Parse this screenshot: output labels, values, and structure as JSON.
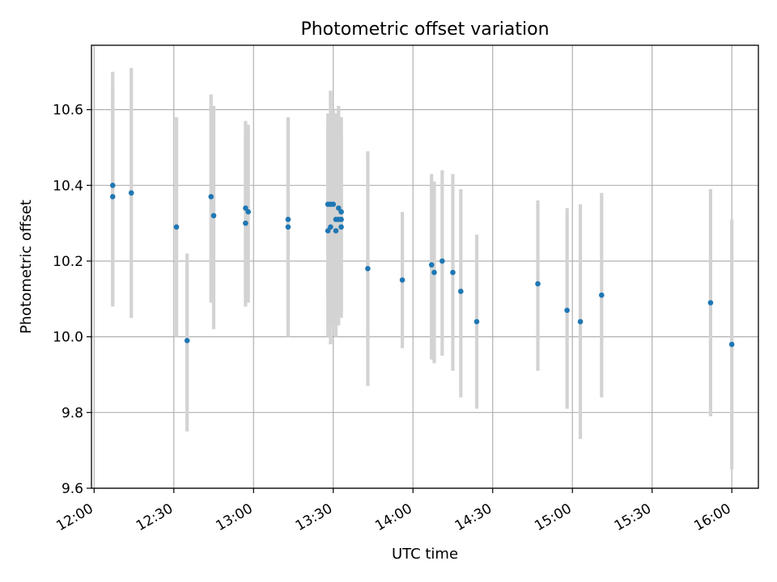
{
  "chart_data": {
    "type": "scatter",
    "title": "Photometric offset variation",
    "xlabel": "UTC time",
    "ylabel": "Photometric offset",
    "xlim": [
      "11:59",
      "16:10"
    ],
    "ylim": [
      9.6,
      10.77
    ],
    "x_ticks": [
      "12:00",
      "12:30",
      "13:00",
      "13:30",
      "14:00",
      "14:30",
      "15:00",
      "15:30",
      "16:00"
    ],
    "y_ticks": [
      "9.6",
      "9.8",
      "10.0",
      "10.2",
      "10.4",
      "10.6"
    ],
    "grid": true,
    "point_color": "#1f77b4",
    "errorbar_color": "#d3d3d3",
    "points": [
      {
        "t": "12:07",
        "y": 10.37,
        "lo": 10.08,
        "hi": 10.66
      },
      {
        "t": "12:07",
        "y": 10.4,
        "lo": 10.09,
        "hi": 10.7
      },
      {
        "t": "12:14",
        "y": 10.38,
        "lo": 10.05,
        "hi": 10.71
      },
      {
        "t": "12:31",
        "y": 10.29,
        "lo": 10.0,
        "hi": 10.58
      },
      {
        "t": "12:35",
        "y": 9.99,
        "lo": 9.75,
        "hi": 10.22
      },
      {
        "t": "12:44",
        "y": 10.37,
        "lo": 10.09,
        "hi": 10.64
      },
      {
        "t": "12:45",
        "y": 10.32,
        "lo": 10.02,
        "hi": 10.61
      },
      {
        "t": "12:57",
        "y": 10.34,
        "lo": 10.08,
        "hi": 10.57
      },
      {
        "t": "12:57",
        "y": 10.3,
        "lo": 10.08,
        "hi": 10.53
      },
      {
        "t": "12:58",
        "y": 10.33,
        "lo": 10.09,
        "hi": 10.56
      },
      {
        "t": "13:13",
        "y": 10.31,
        "lo": 10.04,
        "hi": 10.58
      },
      {
        "t": "13:13",
        "y": 10.29,
        "lo": 10.0,
        "hi": 10.58
      },
      {
        "t": "13:28",
        "y": 10.35,
        "lo": 10.11,
        "hi": 10.59
      },
      {
        "t": "13:28",
        "y": 10.28,
        "lo": 10.0,
        "hi": 10.55
      },
      {
        "t": "13:29",
        "y": 10.29,
        "lo": 9.98,
        "hi": 10.56
      },
      {
        "t": "13:29",
        "y": 10.35,
        "lo": 10.05,
        "hi": 10.65
      },
      {
        "t": "13:30",
        "y": 10.35,
        "lo": 10.03,
        "hi": 10.6
      },
      {
        "t": "13:31",
        "y": 10.31,
        "lo": 10.04,
        "hi": 10.59
      },
      {
        "t": "13:31",
        "y": 10.28,
        "lo": 10.0,
        "hi": 10.56
      },
      {
        "t": "13:32",
        "y": 10.31,
        "lo": 10.03,
        "hi": 10.6
      },
      {
        "t": "13:32",
        "y": 10.34,
        "lo": 10.05,
        "hi": 10.61
      },
      {
        "t": "13:33",
        "y": 10.33,
        "lo": 10.08,
        "hi": 10.58
      },
      {
        "t": "13:33",
        "y": 10.31,
        "lo": 10.05,
        "hi": 10.57
      },
      {
        "t": "13:33",
        "y": 10.29,
        "lo": 10.06,
        "hi": 10.52
      },
      {
        "t": "13:43",
        "y": 10.18,
        "lo": 9.87,
        "hi": 10.49
      },
      {
        "t": "13:56",
        "y": 10.15,
        "lo": 9.97,
        "hi": 10.33
      },
      {
        "t": "14:07",
        "y": 10.19,
        "lo": 9.94,
        "hi": 10.43
      },
      {
        "t": "14:08",
        "y": 10.17,
        "lo": 9.93,
        "hi": 10.41
      },
      {
        "t": "14:11",
        "y": 10.2,
        "lo": 9.95,
        "hi": 10.44
      },
      {
        "t": "14:15",
        "y": 10.17,
        "lo": 9.91,
        "hi": 10.43
      },
      {
        "t": "14:18",
        "y": 10.12,
        "lo": 9.84,
        "hi": 10.39
      },
      {
        "t": "14:24",
        "y": 10.04,
        "lo": 9.81,
        "hi": 10.27
      },
      {
        "t": "14:47",
        "y": 10.14,
        "lo": 9.91,
        "hi": 10.36
      },
      {
        "t": "14:58",
        "y": 10.07,
        "lo": 9.81,
        "hi": 10.34
      },
      {
        "t": "15:03",
        "y": 10.04,
        "lo": 9.73,
        "hi": 10.35
      },
      {
        "t": "15:11",
        "y": 10.11,
        "lo": 9.84,
        "hi": 10.38
      },
      {
        "t": "15:52",
        "y": 10.09,
        "lo": 9.79,
        "hi": 10.39
      },
      {
        "t": "16:00",
        "y": 9.98,
        "lo": 9.65,
        "hi": 10.31
      }
    ]
  }
}
